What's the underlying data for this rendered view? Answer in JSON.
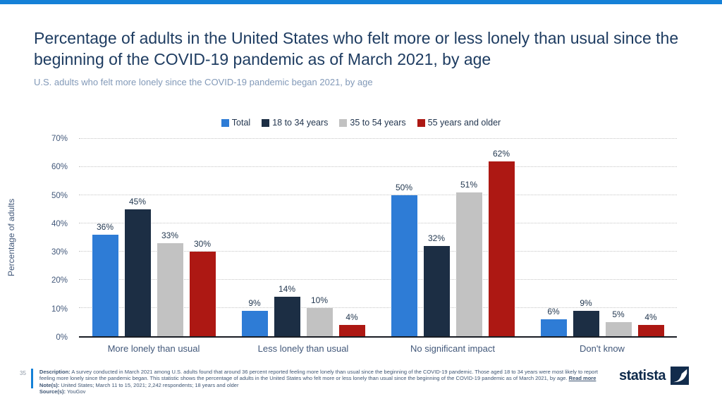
{
  "accent_color": "#1581d7",
  "chart_data": {
    "type": "bar",
    "title": "Percentage of adults in the United States who felt more or less lonely than usual since the beginning of the COVID-19 pandemic as of March 2021, by age",
    "subtitle": "U.S. adults who felt more lonely since the COVID-19 pandemic began 2021, by age",
    "categories": [
      "More lonely than usual",
      "Less lonely than usual",
      "No significant impact",
      "Don't know"
    ],
    "series": [
      {
        "name": "Total",
        "color": "#2e7cd6",
        "values": [
          36,
          9,
          50,
          6
        ]
      },
      {
        "name": "18 to 34 years",
        "color": "#1c2e44",
        "values": [
          45,
          14,
          32,
          9
        ]
      },
      {
        "name": "35 to 54 years",
        "color": "#c2c2c2",
        "values": [
          33,
          10,
          51,
          5
        ]
      },
      {
        "name": "55 years and older",
        "color": "#ad1813",
        "values": [
          30,
          4,
          62,
          4
        ]
      }
    ],
    "xlabel": "",
    "ylabel": "Percentage of adults",
    "ylim": [
      0,
      70
    ],
    "ytick_step": 10,
    "value_suffix": "%",
    "grid": "horizontal-dotted",
    "legend_position": "top"
  },
  "footer": {
    "page_number": "35",
    "description_label": "Description:",
    "description_text": "A survey conducted in March 2021 among U.S. adults found that around 36 percent reported feeling more lonely than usual since the beginning of the COVID-19 pandemic. Those aged 18 to 34 years were most likely to report feeling more lonely since the pandemic began. This statistic shows the percentage of adults in the United States who felt more or less lonely than usual since the beginning of the COVID-19 pandemic as of March 2021, by age.",
    "read_more_label": "Read more",
    "notes_label": "Note(s):",
    "notes_text": "United States; March 11 to 15, 2021; 2,242 respondents; 18 years and older",
    "source_label": "Source(s):",
    "source_text": "YouGov"
  },
  "brand": {
    "logo_text": "statista"
  }
}
